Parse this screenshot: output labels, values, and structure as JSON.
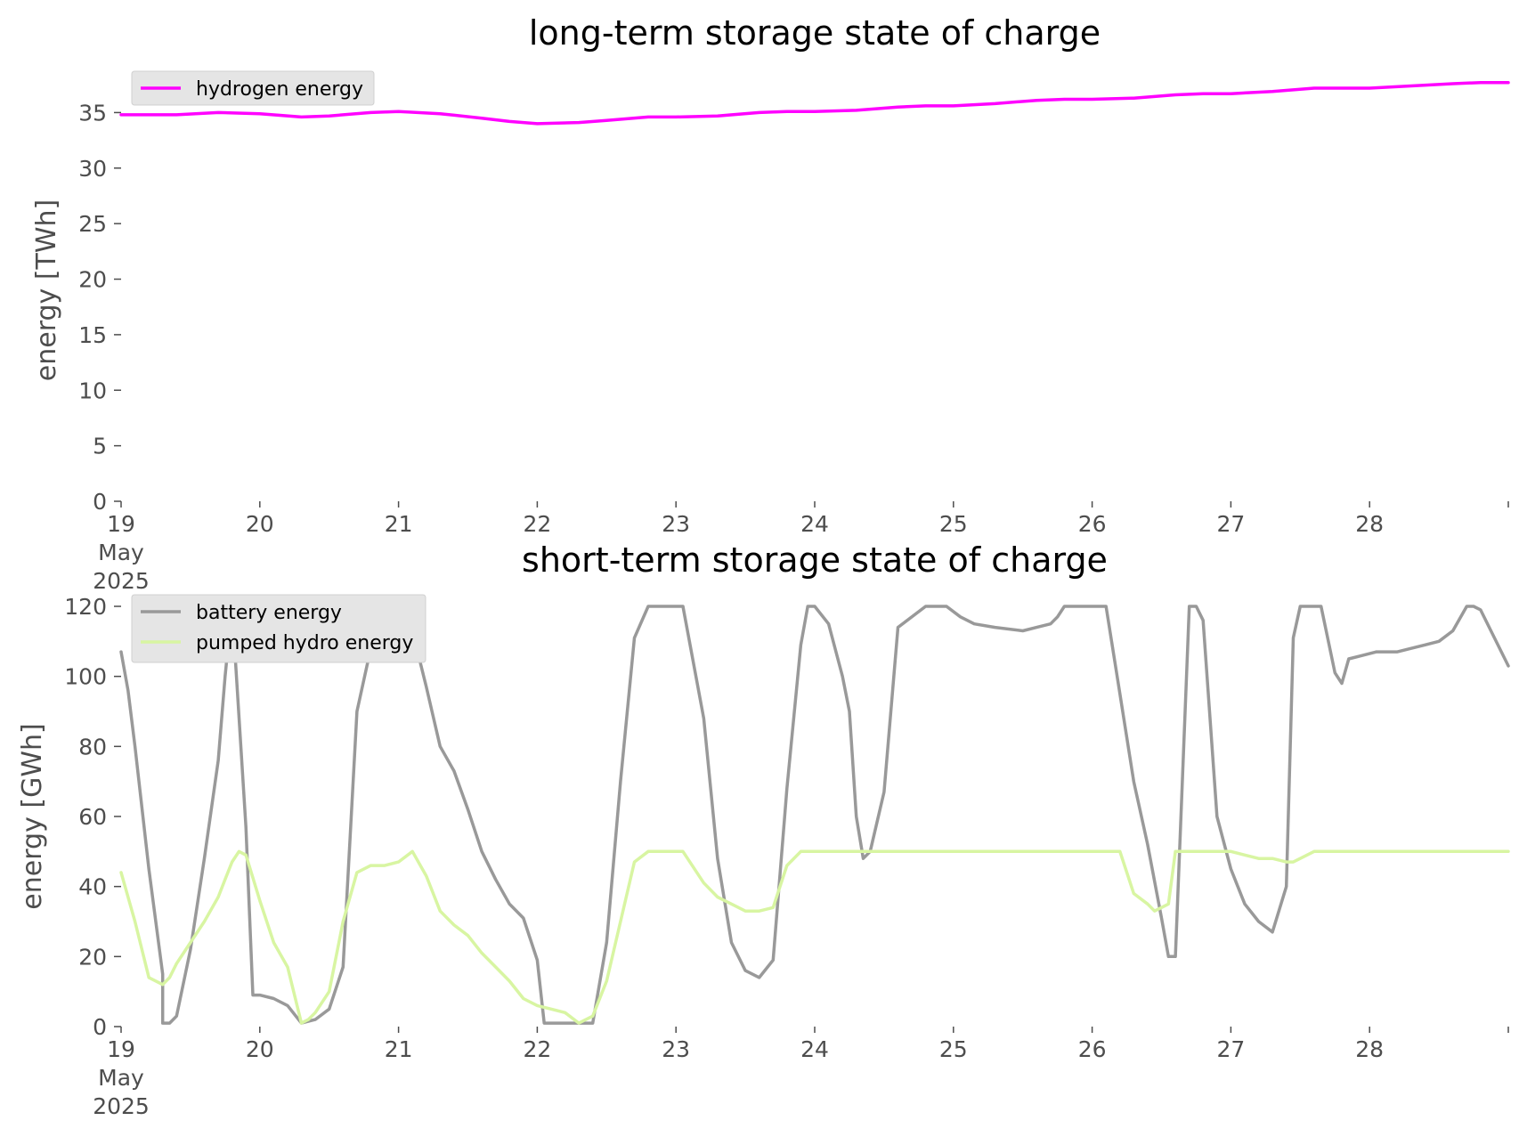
{
  "chart_data": [
    {
      "type": "line",
      "title": "long-term storage state of charge",
      "xlabel": "",
      "ylabel": "energy [TWh]",
      "ylim": [
        0,
        38
      ],
      "xlim": [
        0,
        10
      ],
      "grid": false,
      "legend_position": "top-left",
      "x_ticks": [
        {
          "pos": 0,
          "lines": [
            "19",
            "May",
            "2025"
          ]
        },
        {
          "pos": 1,
          "lines": [
            "20"
          ]
        },
        {
          "pos": 2,
          "lines": [
            "21"
          ]
        },
        {
          "pos": 3,
          "lines": [
            "22"
          ]
        },
        {
          "pos": 4,
          "lines": [
            "23"
          ]
        },
        {
          "pos": 5,
          "lines": [
            "24"
          ]
        },
        {
          "pos": 6,
          "lines": [
            "25"
          ]
        },
        {
          "pos": 7,
          "lines": [
            "26"
          ]
        },
        {
          "pos": 8,
          "lines": [
            "27"
          ]
        },
        {
          "pos": 9,
          "lines": [
            "28"
          ]
        },
        {
          "pos": 10,
          "lines": [
            ""
          ]
        }
      ],
      "y_ticks": [
        "0",
        "5",
        "10",
        "15",
        "20",
        "25",
        "30",
        "35"
      ],
      "series": [
        {
          "name": "hydrogen energy",
          "color": "#ff00ff",
          "x": [
            0,
            0.4,
            0.7,
            1.0,
            1.3,
            1.5,
            1.8,
            2.0,
            2.3,
            2.6,
            2.8,
            3.0,
            3.3,
            3.5,
            3.8,
            4.0,
            4.3,
            4.6,
            4.8,
            5.0,
            5.3,
            5.6,
            5.8,
            6.0,
            6.3,
            6.6,
            6.8,
            7.0,
            7.3,
            7.6,
            7.8,
            8.0,
            8.3,
            8.6,
            8.8,
            9.0,
            9.3,
            9.6,
            9.8,
            10.0
          ],
          "y": [
            34.8,
            34.8,
            35.0,
            34.9,
            34.6,
            34.7,
            35.0,
            35.1,
            34.9,
            34.5,
            34.2,
            34.0,
            34.1,
            34.3,
            34.6,
            34.6,
            34.7,
            35.0,
            35.1,
            35.1,
            35.2,
            35.5,
            35.6,
            35.6,
            35.8,
            36.1,
            36.2,
            36.2,
            36.3,
            36.6,
            36.7,
            36.7,
            36.9,
            37.2,
            37.2,
            37.2,
            37.4,
            37.6,
            37.7,
            37.7
          ]
        }
      ]
    },
    {
      "type": "line",
      "title": "short-term storage state of charge",
      "xlabel": "",
      "ylabel": "energy [GWh]",
      "ylim": [
        0,
        120
      ],
      "xlim": [
        0,
        10
      ],
      "grid": false,
      "legend_position": "top-left",
      "x_ticks": [
        {
          "pos": 0,
          "lines": [
            "19",
            "May",
            "2025"
          ]
        },
        {
          "pos": 1,
          "lines": [
            "20"
          ]
        },
        {
          "pos": 2,
          "lines": [
            "21"
          ]
        },
        {
          "pos": 3,
          "lines": [
            "22"
          ]
        },
        {
          "pos": 4,
          "lines": [
            "23"
          ]
        },
        {
          "pos": 5,
          "lines": [
            "24"
          ]
        },
        {
          "pos": 6,
          "lines": [
            "25"
          ]
        },
        {
          "pos": 7,
          "lines": [
            "26"
          ]
        },
        {
          "pos": 8,
          "lines": [
            "27"
          ]
        },
        {
          "pos": 9,
          "lines": [
            "28"
          ]
        },
        {
          "pos": 10,
          "lines": [
            ""
          ]
        }
      ],
      "y_ticks": [
        "0",
        "20",
        "40",
        "60",
        "80",
        "100",
        "120"
      ],
      "series": [
        {
          "name": "battery energy",
          "color": "#999999",
          "x": [
            0,
            0.05,
            0.1,
            0.2,
            0.3,
            0.3,
            0.35,
            0.4,
            0.5,
            0.6,
            0.7,
            0.75,
            0.8,
            0.9,
            0.95,
            1.0,
            1.1,
            1.2,
            1.3,
            1.4,
            1.5,
            1.6,
            1.7,
            1.8,
            1.9,
            2.0,
            2.1,
            2.15,
            2.2,
            2.3,
            2.4,
            2.5,
            2.6,
            2.7,
            2.8,
            2.9,
            3.0,
            3.05,
            3.3,
            3.4,
            3.5,
            3.6,
            3.7,
            3.8,
            3.95,
            4.05,
            4.2,
            4.3,
            4.4,
            4.5,
            4.6,
            4.7,
            4.8,
            4.9,
            4.95,
            5.0,
            5.1,
            5.2,
            5.25,
            5.3,
            5.35,
            5.4,
            5.5,
            5.6,
            5.8,
            5.95,
            6.05,
            6.15,
            6.3,
            6.5,
            6.6,
            6.7,
            6.75,
            6.8,
            6.95,
            7.1,
            7.2,
            7.3,
            7.4,
            7.5,
            7.55,
            7.6,
            7.7,
            7.75,
            7.8,
            7.9,
            8.0,
            8.05,
            8.1,
            8.2,
            8.3,
            8.4,
            8.45,
            8.5,
            8.6,
            8.65,
            8.75,
            8.8,
            8.85,
            8.95,
            9.05,
            9.2,
            9.3,
            9.4,
            9.5,
            9.6,
            9.7,
            9.75,
            9.8,
            9.9,
            10.0
          ],
          "y": [
            107,
            96,
            80,
            45,
            15,
            1,
            1,
            3,
            22,
            48,
            76,
            100,
            120,
            57,
            9,
            9,
            8,
            6,
            1,
            2,
            5,
            17,
            90,
            108,
            111,
            113,
            120,
            105,
            97,
            80,
            73,
            62,
            50,
            42,
            35,
            31,
            19,
            1,
            1,
            1,
            24,
            70,
            111,
            120,
            120,
            120,
            88,
            48,
            24,
            16,
            14,
            19,
            68,
            109,
            120,
            120,
            115,
            100,
            90,
            60,
            48,
            50,
            67,
            114,
            120,
            120,
            117,
            115,
            114,
            113,
            114,
            115,
            117,
            120,
            120,
            120,
            95,
            70,
            52,
            31,
            20,
            20,
            120,
            120,
            116,
            60,
            45,
            40,
            35,
            30,
            27,
            40,
            111,
            120,
            120,
            120,
            101,
            98,
            105,
            106,
            107,
            107,
            108,
            109,
            110,
            113,
            120,
            120,
            119,
            111,
            103
          ],
          "_note": null
        },
        {
          "name": "pumped hydro energy",
          "color": "#d8f5a2",
          "x": [
            0,
            0.1,
            0.2,
            0.3,
            0.35,
            0.4,
            0.5,
            0.6,
            0.7,
            0.75,
            0.8,
            0.85,
            0.9,
            1.0,
            1.1,
            1.2,
            1.3,
            1.35,
            1.4,
            1.5,
            1.6,
            1.7,
            1.8,
            1.85,
            1.9,
            2.0,
            2.1,
            2.2,
            2.3,
            2.4,
            2.5,
            2.6,
            2.7,
            2.8,
            2.9,
            3.0,
            3.1,
            3.2,
            3.3,
            3.4,
            3.5,
            3.6,
            3.7,
            3.8,
            3.85,
            3.95,
            4.05,
            4.2,
            4.3,
            4.35,
            4.4,
            4.5,
            4.6,
            4.7,
            4.8,
            4.9,
            4.95,
            5.0,
            5.2,
            5.5,
            5.8,
            6.0,
            6.2,
            6.5,
            6.8,
            6.95,
            7.1,
            7.2,
            7.3,
            7.4,
            7.45,
            7.5,
            7.55,
            7.6,
            7.7,
            7.75,
            7.8,
            7.9,
            8.0,
            8.1,
            8.2,
            8.3,
            8.4,
            8.45,
            8.5,
            8.6,
            8.7,
            8.8,
            8.9,
            9.0,
            9.3,
            9.6,
            9.8,
            10.0
          ],
          "y": [
            44,
            30,
            14,
            12,
            14,
            18,
            24,
            30,
            37,
            42,
            47,
            50,
            49,
            36,
            24,
            17,
            1,
            2,
            4,
            10,
            30,
            44,
            46,
            46,
            46,
            47,
            50,
            43,
            33,
            29,
            26,
            21,
            17,
            13,
            8,
            6,
            5,
            4,
            1,
            3,
            13,
            30,
            47,
            50,
            50,
            50,
            50,
            41,
            37,
            36,
            35,
            33,
            33,
            34,
            46,
            50,
            50,
            50,
            50,
            50,
            50,
            50,
            50,
            50,
            50,
            50,
            50,
            50,
            38,
            35,
            33,
            34,
            35,
            50,
            50,
            50,
            50,
            50,
            50,
            49,
            48,
            48,
            47,
            47,
            48,
            50,
            50,
            50,
            50,
            50,
            50,
            50,
            50,
            50
          ]
        }
      ]
    }
  ]
}
